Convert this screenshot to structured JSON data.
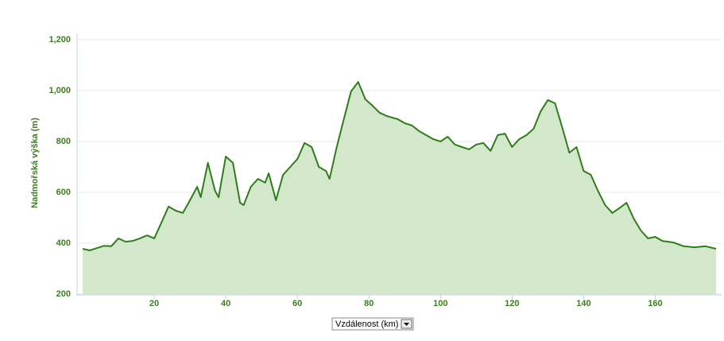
{
  "chart_data": {
    "type": "area",
    "y_label": "Nadmořská výška (m)",
    "x_label": "Vzdálenost (km)",
    "x": [
      0,
      2,
      4,
      6,
      8,
      10,
      12,
      14,
      16,
      18,
      20,
      22,
      24,
      26,
      28,
      30,
      32,
      33,
      35,
      37,
      38,
      40,
      42,
      44,
      45,
      47,
      49,
      51,
      52,
      54,
      56,
      58,
      60,
      62,
      64,
      66,
      68,
      69,
      71,
      73,
      75,
      77,
      79,
      81,
      83,
      85,
      88,
      90,
      92,
      94,
      96,
      98,
      100,
      102,
      104,
      106,
      108,
      110,
      112,
      114,
      116,
      118,
      120,
      122,
      124,
      126,
      128,
      130,
      132,
      134,
      136,
      138,
      140,
      142,
      144,
      146,
      148,
      150,
      152,
      154,
      156,
      158,
      160,
      162,
      165,
      168,
      171,
      174,
      177
    ],
    "values": [
      378,
      372,
      381,
      390,
      388,
      419,
      406,
      409,
      419,
      431,
      419,
      481,
      544,
      528,
      519,
      569,
      622,
      581,
      716,
      606,
      581,
      741,
      716,
      559,
      550,
      622,
      653,
      638,
      675,
      569,
      669,
      700,
      731,
      794,
      778,
      700,
      684,
      653,
      778,
      888,
      997,
      1034,
      966,
      941,
      913,
      900,
      888,
      872,
      863,
      841,
      825,
      809,
      800,
      819,
      788,
      778,
      769,
      788,
      794,
      763,
      825,
      831,
      778,
      809,
      825,
      850,
      919,
      963,
      950,
      856,
      756,
      778,
      684,
      669,
      606,
      550,
      519,
      538,
      559,
      497,
      450,
      419,
      425,
      409,
      403,
      388,
      384,
      388,
      378
    ],
    "color": "#2e7d1a",
    "fill_color": "#d3e8ca",
    "xlim": [
      0,
      177
    ],
    "ylim": [
      200,
      1200
    ],
    "xticks": [
      20,
      40,
      60,
      80,
      100,
      120,
      140,
      160
    ],
    "yticks": [
      200,
      400,
      600,
      800,
      {
        "value": 1000,
        "label": "1,000"
      },
      {
        "value": 1200,
        "label": "1,200"
      }
    ],
    "grid": true
  }
}
